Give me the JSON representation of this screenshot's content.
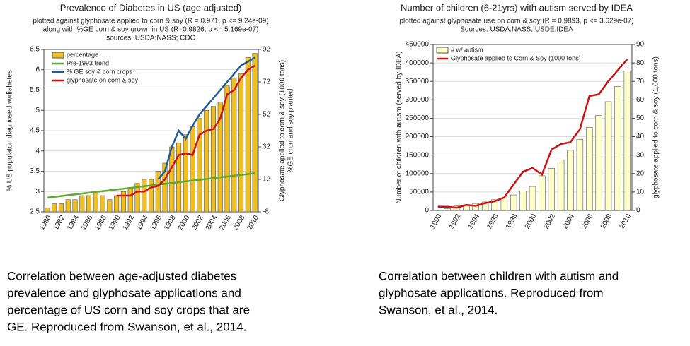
{
  "chart_data": [
    {
      "type": "bar",
      "title": "Prevalence of Diabetes in US (age adjusted)",
      "subtitle": [
        "plotted against glyphosate applied to corn & soy (R = 0.971, p <= 9.24e-09)",
        "along with %GE corn & soy grown in US (R=0.9826, p <= 5.169e-07)",
        "sources: USDA:NASS; CDC"
      ],
      "ylabel": "% US populaton diagnosed w/diabetes",
      "y2label": [
        "Glyphosate applied to corn & soy (1000 tons)",
        "%GE cron and soy planted"
      ],
      "categories": [
        "1980",
        null,
        "1982",
        null,
        "1984",
        null,
        "1986",
        null,
        "1988",
        null,
        "1990",
        null,
        "1992",
        null,
        "1994",
        null,
        "1996",
        null,
        "1998",
        null,
        "2000",
        null,
        "2002",
        null,
        "2004",
        null,
        "2006",
        null,
        "2008",
        null,
        "2010"
      ],
      "ylim": [
        2.5,
        6.5
      ],
      "yticks": [
        2.5,
        3,
        3.5,
        4,
        4.5,
        5,
        5.5,
        6,
        6.5
      ],
      "y2lim": [
        -8,
        92
      ],
      "y2ticks": [
        -8,
        12,
        32,
        52,
        72,
        92
      ],
      "grid": true,
      "series": [
        {
          "name": "percentage",
          "type": "bar",
          "color": "#f0c020",
          "values": [
            2.6,
            2.7,
            2.7,
            2.8,
            2.8,
            2.9,
            2.9,
            3.0,
            2.9,
            2.8,
            2.9,
            3.0,
            3.1,
            3.2,
            3.3,
            3.3,
            3.5,
            3.7,
            4.1,
            4.2,
            4.4,
            4.6,
            4.8,
            5.0,
            5.1,
            5.2,
            5.6,
            5.8,
            5.9,
            6.3,
            6.4
          ]
        },
        {
          "name": "Pre-1993 trend",
          "type": "line",
          "color": "#60a830",
          "values": [
            2.85,
            2.87,
            2.89,
            2.91,
            2.93,
            2.95,
            2.97,
            2.99,
            3.01,
            3.03,
            3.05,
            3.07,
            3.09,
            3.11,
            3.13,
            3.15,
            3.17,
            3.19,
            3.21,
            3.23,
            3.25,
            3.27,
            3.29,
            3.31,
            3.33,
            3.35,
            3.37,
            3.39,
            3.41,
            3.43,
            3.45
          ]
        },
        {
          "name": "% GE soy & corn crops",
          "type": "line",
          "axis": "y2",
          "color": "#1f5c99",
          "values": [
            null,
            null,
            null,
            null,
            null,
            null,
            null,
            null,
            null,
            null,
            null,
            null,
            null,
            null,
            null,
            null,
            12,
            17,
            32,
            42,
            37,
            45,
            52,
            57,
            62,
            67,
            72,
            77,
            82,
            84.5,
            87
          ]
        },
        {
          "name": "glyphosate on corn & soy",
          "type": "line",
          "axis": "y2",
          "color": "#cc1111",
          "values": [
            null,
            null,
            null,
            null,
            null,
            null,
            null,
            null,
            null,
            null,
            2,
            2,
            2,
            4.5,
            4.5,
            7,
            8,
            12,
            19.5,
            27,
            28,
            27,
            39.5,
            42,
            43,
            49.5,
            64.5,
            67,
            74.5,
            79.5,
            82
          ]
        }
      ]
    },
    {
      "type": "bar",
      "title": "Number of children (6-21yrs) with autism served by IDEA",
      "subtitle": [
        "plotted against glyphosate use on corn & soy (R = 0.9893, p <= 3.629e-07)",
        "Sources: USDA:NASS; USDE:IDEA"
      ],
      "ylabel": "Number of children with autism (served by IDEA)",
      "y2label": [
        "glyphosate applied to corn & soy (1,000 tons)"
      ],
      "categories": [
        "1990",
        null,
        "1992",
        null,
        "1994",
        null,
        "1996",
        null,
        "1998",
        null,
        "2000",
        null,
        "2002",
        null,
        "2004",
        null,
        "2006",
        null,
        "2008",
        null,
        "2010"
      ],
      "ylim": [
        0,
        450000
      ],
      "yticks": [
        0,
        50000,
        100000,
        150000,
        200000,
        250000,
        300000,
        350000,
        400000,
        450000
      ],
      "y2lim": [
        0,
        90
      ],
      "y2ticks": [
        0,
        10,
        20,
        30,
        40,
        50,
        60,
        70,
        80,
        90
      ],
      "grid": true,
      "series": [
        {
          "name": "# w/ autism",
          "type": "bar",
          "color": "#ffffcc",
          "values": [
            0,
            5000,
            12000,
            15000,
            19000,
            23000,
            29000,
            34000,
            42000,
            53000,
            65000,
            94000,
            114000,
            137000,
            163000,
            193000,
            225000,
            258000,
            295000,
            336000,
            378000
          ]
        },
        {
          "name": "Glyphosate applied to Corn & Soy (1000 tons)",
          "type": "line",
          "axis": "y2",
          "color": "#cc1111",
          "values": [
            2,
            2,
            1.5,
            3,
            2.5,
            4,
            5,
            7,
            14,
            21,
            23,
            19.5,
            33,
            36,
            37,
            44,
            62,
            63,
            70,
            76,
            82
          ]
        }
      ]
    }
  ],
  "captions": [
    [
      "Correlation between age-adjusted diabetes",
      "prevalence and glyphosate applications and",
      "percentage of US corn and soy crops that are",
      "GE.  Reproduced from Swanson, et al., 2014."
    ],
    [
      "Correlation between children with autism and",
      "glyphosate applications. Reproduced from",
      "Swanson, et al., 2014."
    ]
  ]
}
